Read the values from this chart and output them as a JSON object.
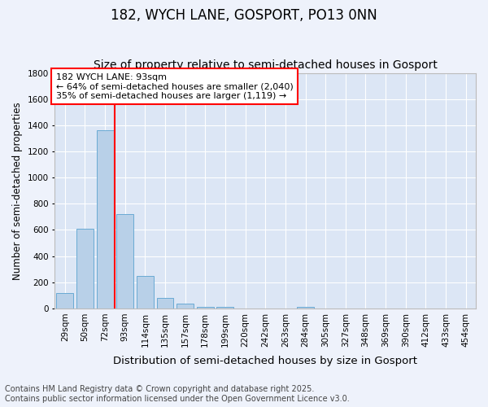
{
  "title": "182, WYCH LANE, GOSPORT, PO13 0NN",
  "subtitle": "Size of property relative to semi-detached houses in Gosport",
  "xlabel": "Distribution of semi-detached houses by size in Gosport",
  "ylabel": "Number of semi-detached properties",
  "categories": [
    "29sqm",
    "50sqm",
    "72sqm",
    "93sqm",
    "114sqm",
    "135sqm",
    "157sqm",
    "178sqm",
    "199sqm",
    "220sqm",
    "242sqm",
    "263sqm",
    "284sqm",
    "305sqm",
    "327sqm",
    "348sqm",
    "369sqm",
    "390sqm",
    "412sqm",
    "433sqm",
    "454sqm"
  ],
  "values": [
    115,
    610,
    1360,
    720,
    250,
    80,
    35,
    12,
    12,
    0,
    0,
    0,
    10,
    0,
    0,
    0,
    0,
    0,
    0,
    0,
    0
  ],
  "bar_color": "#b8d0e8",
  "bar_edge_color": "#6aaad4",
  "red_line_x": 2.5,
  "annotation_line1": "182 WYCH LANE: 93sqm",
  "annotation_line2": "← 64% of semi-detached houses are smaller (2,040)",
  "annotation_line3": "35% of semi-detached houses are larger (1,119) →",
  "ylim": [
    0,
    1800
  ],
  "yticks": [
    0,
    200,
    400,
    600,
    800,
    1000,
    1200,
    1400,
    1600,
    1800
  ],
  "background_color": "#eef2fb",
  "plot_background": "#dce6f5",
  "grid_color": "#ffffff",
  "footer_line1": "Contains HM Land Registry data © Crown copyright and database right 2025.",
  "footer_line2": "Contains public sector information licensed under the Open Government Licence v3.0.",
  "title_fontsize": 12,
  "subtitle_fontsize": 10,
  "xlabel_fontsize": 9.5,
  "ylabel_fontsize": 8.5,
  "tick_fontsize": 7.5,
  "annotation_fontsize": 8,
  "footer_fontsize": 7
}
